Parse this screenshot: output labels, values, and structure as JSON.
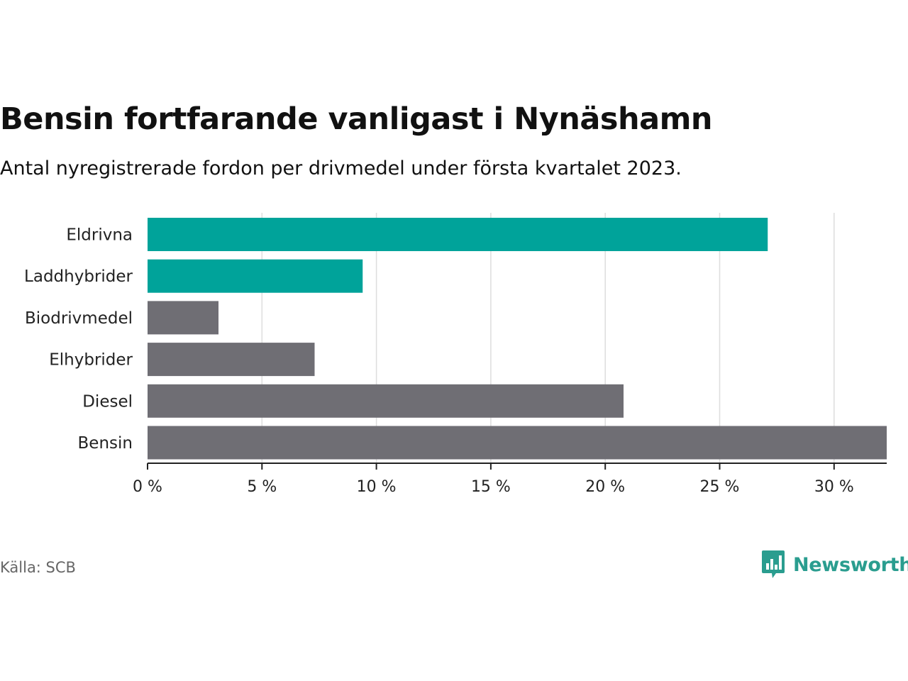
{
  "chart_data": {
    "type": "bar",
    "orientation": "horizontal",
    "title": "Bensin fortfarande vanligast i Nynäshamn",
    "subtitle": "Antal nyregistrerade fordon per drivmedel under första kvartalet 2023.",
    "categories": [
      "Eldrivna",
      "Laddhybrider",
      "Biodrivmedel",
      "Elhybrider",
      "Diesel",
      "Bensin"
    ],
    "values": [
      27.1,
      9.4,
      3.1,
      7.3,
      20.8,
      32.3
    ],
    "highlighted": [
      true,
      true,
      false,
      false,
      false,
      false
    ],
    "colors": {
      "highlight": "#00a39a",
      "default": "#6f6e74"
    },
    "xlim": [
      0,
      32.3
    ],
    "xticks": [
      0,
      5,
      10,
      15,
      20,
      25,
      30
    ],
    "tick_labels": [
      "0 %",
      "5 %",
      "10 %",
      "15 %",
      "20 %",
      "25 %",
      "30 %"
    ],
    "grid": true
  },
  "source": "Källa: SCB",
  "brand": {
    "name": "Newsworthy",
    "color": "#2a9d8f"
  }
}
